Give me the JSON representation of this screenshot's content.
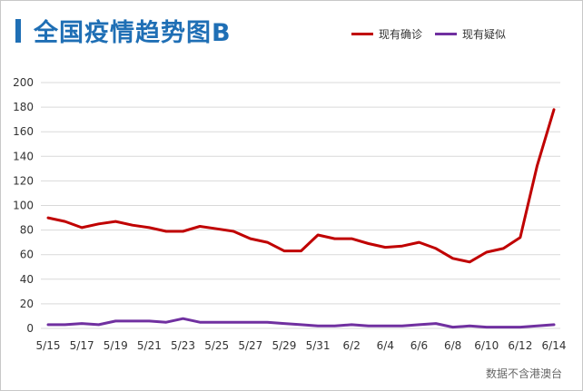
{
  "chart_data": {
    "type": "line",
    "title": "全国疫情趋势图B",
    "source": "数据不含港澳台",
    "xlabel": "",
    "ylabel": "",
    "ylim": [
      0,
      200
    ],
    "yticks": [
      "0",
      "20",
      "40",
      "60",
      "80",
      "100",
      "120",
      "140",
      "160",
      "180",
      "200"
    ],
    "grid": true,
    "legend_position": "top-right",
    "x": [
      "5/15",
      "5/16",
      "5/17",
      "5/18",
      "5/19",
      "5/20",
      "5/21",
      "5/22",
      "5/23",
      "5/24",
      "5/25",
      "5/26",
      "5/27",
      "5/28",
      "5/29",
      "5/30",
      "5/31",
      "6/1",
      "6/2",
      "6/3",
      "6/4",
      "6/5",
      "6/6",
      "6/7",
      "6/8",
      "6/9",
      "6/10",
      "6/11",
      "6/12",
      "6/13",
      "6/14"
    ],
    "xtick_labels": [
      "5/15",
      "5/17",
      "5/19",
      "5/21",
      "5/23",
      "5/25",
      "5/27",
      "5/29",
      "5/31",
      "6/2",
      "6/4",
      "6/6",
      "6/8",
      "6/10",
      "6/12",
      "6/14"
    ],
    "series": [
      {
        "name": "现有确诊",
        "color": "#c00000",
        "values": [
          90,
          87,
          82,
          85,
          87,
          84,
          82,
          79,
          79,
          83,
          81,
          79,
          73,
          70,
          63,
          63,
          76,
          73,
          73,
          69,
          66,
          67,
          70,
          65,
          57,
          54,
          62,
          65,
          74,
          132,
          178
        ]
      },
      {
        "name": "现有疑似",
        "color": "#7030a0",
        "values": [
          3,
          3,
          4,
          3,
          6,
          6,
          6,
          5,
          8,
          5,
          5,
          5,
          5,
          5,
          4,
          3,
          2,
          2,
          3,
          2,
          2,
          2,
          3,
          4,
          1,
          2,
          1,
          1,
          1,
          2,
          3
        ]
      }
    ]
  }
}
